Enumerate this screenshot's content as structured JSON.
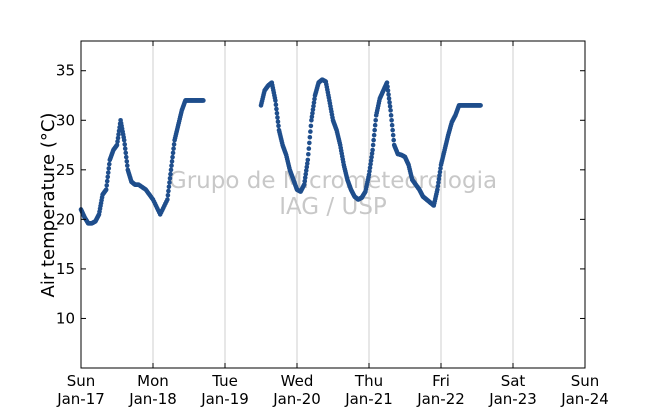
{
  "chart_data": {
    "type": "scatter",
    "ylabel": "Air temperature (°C)",
    "xlabel": "",
    "ylim": [
      5,
      38
    ],
    "xlim": [
      0,
      7
    ],
    "yticks": [
      10,
      15,
      20,
      25,
      30,
      35
    ],
    "xticks": [
      {
        "day": "Sun",
        "date": "Jan-17"
      },
      {
        "day": "Mon",
        "date": "Jan-18"
      },
      {
        "day": "Tue",
        "date": "Jan-19"
      },
      {
        "day": "Wed",
        "date": "Jan-20"
      },
      {
        "day": "Thu",
        "date": "Jan-21"
      },
      {
        "day": "Fri",
        "date": "Jan-22"
      },
      {
        "day": "Sat",
        "date": "Jan-23"
      },
      {
        "day": "Sun",
        "date": "Jan-24"
      }
    ],
    "grid": "vertical",
    "series_color": "#1f4e8c",
    "watermark": [
      "Grupo de Micrometeorologia",
      "IAG / USP"
    ],
    "series": [
      {
        "x": [
          0.0,
          0.05,
          0.1,
          0.15,
          0.2,
          0.25,
          0.3,
          0.35,
          0.4,
          0.45,
          0.5,
          0.55,
          0.6,
          0.65,
          0.7,
          0.75,
          0.8,
          0.9,
          1.0,
          1.1,
          1.2,
          1.25,
          1.3,
          1.35,
          1.4,
          1.45,
          1.5,
          1.55,
          1.6,
          1.65,
          1.7
        ],
        "y": [
          21.0,
          20.2,
          19.6,
          19.6,
          19.8,
          20.5,
          22.5,
          23.0,
          26.0,
          27.0,
          27.5,
          30.0,
          28.0,
          25.0,
          23.8,
          23.5,
          23.5,
          23.0,
          22.0,
          20.5,
          22.0,
          25.0,
          28.0,
          29.5,
          31.0,
          32.0,
          32.0,
          32.0,
          32.0,
          32.0,
          32.0
        ]
      },
      {
        "x": [
          2.5,
          2.55,
          2.6,
          2.65,
          2.7,
          2.75,
          2.8,
          2.85,
          2.9,
          2.95,
          3.0,
          3.05,
          3.1,
          3.15,
          3.2,
          3.25,
          3.3,
          3.35,
          3.4,
          3.45,
          3.5,
          3.55,
          3.6,
          3.65,
          3.7,
          3.75,
          3.8,
          3.85,
          3.9,
          3.95,
          4.0,
          4.05,
          4.1,
          4.15,
          4.2,
          4.25,
          4.3,
          4.35,
          4.4,
          4.45,
          4.5,
          4.55,
          4.6,
          4.65,
          4.7,
          4.75,
          4.8,
          4.85,
          4.9,
          4.95,
          5.0,
          5.05,
          5.1,
          5.15,
          5.2,
          5.25,
          5.3,
          5.35,
          5.4,
          5.45,
          5.5,
          5.55
        ],
        "y": [
          31.5,
          33.0,
          33.5,
          33.8,
          32.0,
          29.0,
          27.5,
          26.5,
          25.0,
          24.0,
          23.0,
          22.8,
          23.5,
          26.0,
          30.0,
          32.5,
          33.8,
          34.1,
          33.9,
          32.0,
          30.0,
          29.0,
          27.5,
          25.5,
          24.0,
          23.0,
          22.3,
          22.0,
          22.2,
          22.8,
          24.5,
          27.0,
          30.5,
          32.2,
          33.0,
          33.8,
          31.0,
          27.5,
          26.6,
          26.5,
          26.3,
          25.5,
          24.0,
          23.5,
          23.0,
          22.3,
          22.0,
          21.7,
          21.4,
          23.0,
          25.5,
          27.0,
          28.5,
          29.8,
          30.5,
          31.5,
          31.5,
          31.5,
          31.5,
          31.5,
          31.5,
          31.5
        ]
      }
    ]
  }
}
